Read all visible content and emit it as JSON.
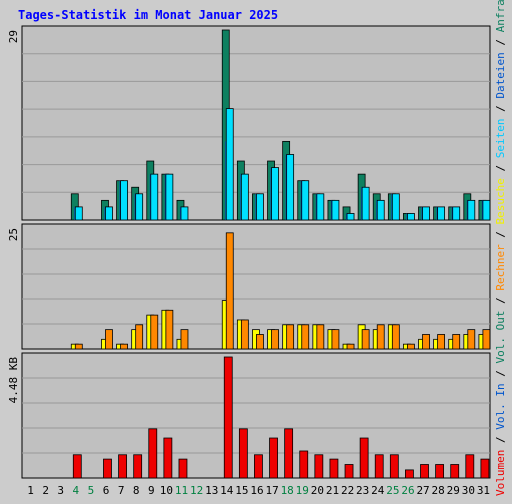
{
  "chart_data": [
    {
      "type": "bar",
      "title": "Tages-Statistik im Monat Januar 2025",
      "categories": [
        "1",
        "2",
        "3",
        "4",
        "5",
        "6",
        "7",
        "8",
        "9",
        "10",
        "11",
        "12",
        "13",
        "14",
        "15",
        "16",
        "17",
        "18",
        "19",
        "20",
        "21",
        "22",
        "23",
        "24",
        "25",
        "26",
        "27",
        "28",
        "29",
        "30",
        "31"
      ],
      "weekend_days": [
        "4",
        "5",
        "11",
        "12",
        "18",
        "19",
        "25",
        "26"
      ],
      "ymax_label": "29",
      "ylim": [
        0,
        29
      ],
      "series": [
        {
          "name": "Anfragen",
          "color": "#0e8060",
          "values": [
            0,
            0,
            0,
            4,
            0,
            3,
            6,
            5,
            9,
            7,
            3,
            0,
            0,
            29,
            9,
            4,
            9,
            12,
            6,
            4,
            3,
            2,
            7,
            4,
            4,
            1,
            2,
            2,
            2,
            4,
            3
          ]
        },
        {
          "name": "Dateien",
          "color": "#0055cc",
          "values": [
            0,
            0,
            0,
            2,
            0,
            2,
            6,
            4,
            7,
            7,
            2,
            0,
            0,
            12,
            7,
            4,
            8,
            10,
            6,
            4,
            3,
            1,
            5,
            3,
            4,
            1,
            2,
            2,
            2,
            3,
            3
          ]
        },
        {
          "name": "Seiten",
          "color": "#00e0ff",
          "values": [
            0,
            0,
            0,
            2,
            0,
            2,
            6,
            4,
            7,
            7,
            2,
            0,
            0,
            17,
            7,
            4,
            8,
            10,
            6,
            4,
            3,
            1,
            5,
            3,
            4,
            1,
            2,
            2,
            2,
            3,
            3
          ]
        }
      ],
      "legend_position": "right-vertical"
    },
    {
      "type": "bar",
      "categories": [
        "1",
        "2",
        "3",
        "4",
        "5",
        "6",
        "7",
        "8",
        "9",
        "10",
        "11",
        "12",
        "13",
        "14",
        "15",
        "16",
        "17",
        "18",
        "19",
        "20",
        "21",
        "22",
        "23",
        "24",
        "25",
        "26",
        "27",
        "28",
        "29",
        "30",
        "31"
      ],
      "ymax_label": "25",
      "ylim": [
        0,
        25
      ],
      "series": [
        {
          "name": "Besuche",
          "color": "#ffff00",
          "values": [
            0,
            0,
            0,
            1,
            0,
            2,
            1,
            4,
            7,
            8,
            2,
            0,
            0,
            10,
            6,
            4,
            4,
            5,
            5,
            5,
            4,
            1,
            5,
            4,
            5,
            1,
            2,
            2,
            2,
            3,
            3
          ]
        },
        {
          "name": "Rechner",
          "color": "#ff8800",
          "values": [
            0,
            0,
            0,
            1,
            0,
            4,
            1,
            5,
            7,
            8,
            4,
            0,
            0,
            24,
            6,
            3,
            4,
            5,
            5,
            5,
            4,
            1,
            4,
            5,
            5,
            1,
            3,
            3,
            3,
            4,
            4
          ]
        }
      ],
      "legend_position": "right-vertical"
    },
    {
      "type": "bar",
      "categories": [
        "1",
        "2",
        "3",
        "4",
        "5",
        "6",
        "7",
        "8",
        "9",
        "10",
        "11",
        "12",
        "13",
        "14",
        "15",
        "16",
        "17",
        "18",
        "19",
        "20",
        "21",
        "22",
        "23",
        "24",
        "25",
        "26",
        "27",
        "28",
        "29",
        "30",
        "31"
      ],
      "ymax_label": "4.48 KB",
      "ylim": [
        0,
        4.48
      ],
      "series": [
        {
          "name": "Volumen",
          "color": "#ee0000",
          "values": [
            0,
            0,
            0,
            0.86,
            0,
            0.7,
            0.86,
            0.86,
            1.82,
            1.48,
            0.7,
            0,
            0,
            4.48,
            1.82,
            0.86,
            1.48,
            1.82,
            1.0,
            0.86,
            0.7,
            0.5,
            1.48,
            0.86,
            0.86,
            0.3,
            0.5,
            0.5,
            0.5,
            0.86,
            0.7
          ]
        }
      ],
      "legend_position": "right-vertical"
    }
  ],
  "legend_right": {
    "top": {
      "items": [
        "Anfragen",
        "Dateien",
        "Seiten",
        "Besuche",
        "Rechner",
        "Vol. Out",
        "Vol. In",
        "Volumen"
      ]
    },
    "colors": {
      "Anfragen": "#0e8060",
      "Dateien": "#0055cc",
      "Seiten": "#00c8ff",
      "Besuche": "#f0f000",
      "Rechner": "#ff8800",
      "Vol. Out": "#0e8060",
      "Vol. In": "#0055cc",
      "Volumen": "#ee0000"
    },
    "separator": " / "
  },
  "colors": {
    "background": "#cccccc",
    "panel": "#c0c0c0",
    "grid": "#999999",
    "title": "#0000ff",
    "axis_text": "#000000",
    "weekend_text": "#008040"
  }
}
